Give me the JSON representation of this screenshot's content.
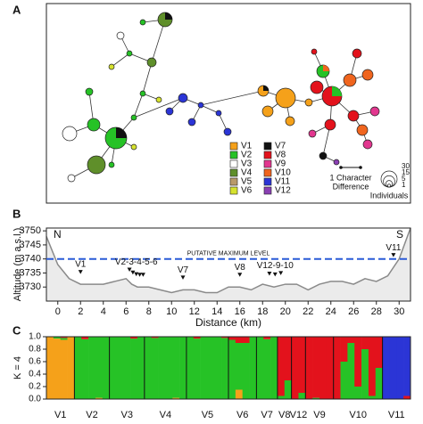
{
  "network": {
    "label": "A",
    "legend": {
      "items": [
        {
          "name": "V1",
          "color": "#f5a11a"
        },
        {
          "name": "V2",
          "color": "#26c226"
        },
        {
          "name": "V3",
          "color": "#ffffff"
        },
        {
          "name": "V4",
          "color": "#5f8f2a"
        },
        {
          "name": "V5",
          "color": "#b89a6a"
        },
        {
          "name": "V6",
          "color": "#d6e22e"
        },
        {
          "name": "V7",
          "color": "#111111"
        },
        {
          "name": "V8",
          "color": "#e3121c"
        },
        {
          "name": "V9",
          "color": "#e2378f"
        },
        {
          "name": "V10",
          "color": "#f0651e"
        },
        {
          "name": "V11",
          "color": "#2b35d6"
        },
        {
          "name": "V12",
          "color": "#8a3fb3"
        }
      ],
      "scale_label": [
        "1 Character",
        "Difference"
      ],
      "sizes": [
        30,
        15,
        5,
        1
      ],
      "sizes_label": "Individuals"
    }
  },
  "chart_data": [
    {
      "type": "line",
      "label": "B",
      "xlabel": "Distance (km)",
      "ylabel": "Altitude (m a.s.l.)",
      "x": [
        -1,
        0,
        1,
        2,
        3,
        4,
        5,
        6,
        6.5,
        7,
        8,
        9,
        10,
        11,
        12,
        13,
        14,
        15,
        16,
        17,
        18,
        19,
        20,
        21,
        22,
        23,
        24,
        25,
        26,
        27,
        28,
        29,
        30,
        31
      ],
      "values": [
        3748,
        3738,
        3733,
        3731,
        3731,
        3731,
        3732,
        3733,
        3731,
        3730,
        3730,
        3729,
        3728,
        3729,
        3729,
        3728,
        3728,
        3730,
        3730,
        3729,
        3731,
        3730,
        3731,
        3731,
        3729,
        3731,
        3732,
        3732,
        3731,
        3733,
        3732,
        3734,
        3740,
        3751
      ],
      "color": "#8a8a8a",
      "xlim": [
        -1,
        31
      ],
      "ylim": [
        3725,
        3751
      ],
      "xticks": [
        0,
        2,
        4,
        6,
        8,
        10,
        12,
        14,
        16,
        18,
        20,
        22,
        24,
        26,
        28,
        30
      ],
      "yticks": [
        3730,
        3735,
        3740,
        3745,
        3750
      ],
      "hline": {
        "value": 3740,
        "label": "PUTATIVE MAXIMUM LEVEL",
        "color": "#2a5bd7"
      },
      "ends": [
        "N",
        "S"
      ],
      "sites": [
        {
          "label": "V1",
          "x": [
            2
          ]
        },
        {
          "label": "V2-3-4-5-6",
          "x": [
            6.3,
            6.6,
            6.9,
            7.2,
            7.5
          ]
        },
        {
          "label": "V7",
          "x": [
            11
          ]
        },
        {
          "label": "V8",
          "x": [
            16
          ]
        },
        {
          "label": "V12-9-10",
          "x": [
            18.6,
            19.1,
            19.6
          ]
        },
        {
          "label": "V11",
          "x": [
            29.5
          ]
        }
      ]
    },
    {
      "type": "stacked_bar",
      "label": "C",
      "ylabel": "K = 4",
      "ylim": [
        0,
        1
      ],
      "yticks": [
        {
          "value": 0,
          "label": "0.0"
        },
        0.2,
        0.4,
        0.6,
        0.8,
        {
          "value": 1,
          "label": "1.0"
        }
      ],
      "groups": [
        {
          "label": "V1",
          "n": 4
        },
        {
          "label": "V2",
          "n": 5
        },
        {
          "label": "V3",
          "n": 5
        },
        {
          "label": "V4",
          "n": 6
        },
        {
          "label": "V5",
          "n": 6
        },
        {
          "label": "V6",
          "n": 4
        },
        {
          "label": "V7",
          "n": 3
        },
        {
          "label": "V8",
          "n": 2
        },
        {
          "label": "V12",
          "n": 2
        },
        {
          "label": "V9",
          "n": 4
        },
        {
          "label": "V10",
          "n": 7
        },
        {
          "label": "V11",
          "n": 4
        }
      ],
      "series": [
        {
          "color": "#f5a11a",
          "values": [
            1,
            0.97,
            0.95,
            1,
            0,
            0,
            0,
            0.02,
            0,
            0,
            0,
            0,
            0,
            0,
            0,
            0,
            0,
            0,
            0.02,
            0,
            0,
            0,
            0,
            0,
            0,
            0,
            0,
            0.15,
            0,
            0,
            0,
            0,
            0,
            0,
            0,
            0,
            0,
            0,
            0,
            0,
            0,
            0,
            0,
            0,
            0,
            0,
            0,
            0,
            0,
            0,
            0,
            0
          ]
        },
        {
          "color": "#26c226",
          "values": [
            0,
            0.03,
            0.03,
            0,
            1,
            0.96,
            1,
            0.98,
            1,
            1,
            1,
            1,
            0.97,
            1,
            1,
            0.98,
            1,
            1,
            0.98,
            1,
            1,
            0.97,
            1,
            1,
            1,
            0.98,
            0.95,
            0.75,
            0.9,
            1,
            1,
            0.96,
            1,
            0.05,
            0.3,
            0,
            0.1,
            0,
            0.02,
            0,
            0,
            0,
            0.6,
            0.9,
            0.2,
            0.8,
            0.05,
            0.5,
            0,
            0,
            0,
            0
          ]
        },
        {
          "color": "#e3121c",
          "values": [
            0,
            0,
            0.02,
            0,
            0,
            0.04,
            0,
            0,
            0,
            0,
            0,
            0,
            0.03,
            0,
            0,
            0.02,
            0,
            0,
            0,
            0,
            0,
            0.03,
            0,
            0,
            0,
            0.02,
            0.05,
            0.1,
            0.1,
            0,
            0,
            0.04,
            0,
            0.95,
            0.7,
            1,
            0.9,
            1,
            0.98,
            1,
            1,
            1,
            0.4,
            0.1,
            0.8,
            0.2,
            0.95,
            0.5,
            0,
            0,
            0,
            0.05
          ]
        },
        {
          "color": "#2b35d6",
          "values": [
            0,
            0,
            0,
            0,
            0,
            0,
            0,
            0,
            0,
            0,
            0,
            0,
            0,
            0,
            0,
            0,
            0,
            0,
            0,
            0,
            0,
            0,
            0,
            0,
            0,
            0,
            0,
            0,
            0,
            0,
            0,
            0,
            0,
            0,
            0,
            0,
            0,
            0,
            0,
            0,
            0,
            0,
            0,
            0,
            0,
            0,
            0,
            0,
            1,
            1,
            1,
            0.95
          ]
        }
      ]
    }
  ]
}
